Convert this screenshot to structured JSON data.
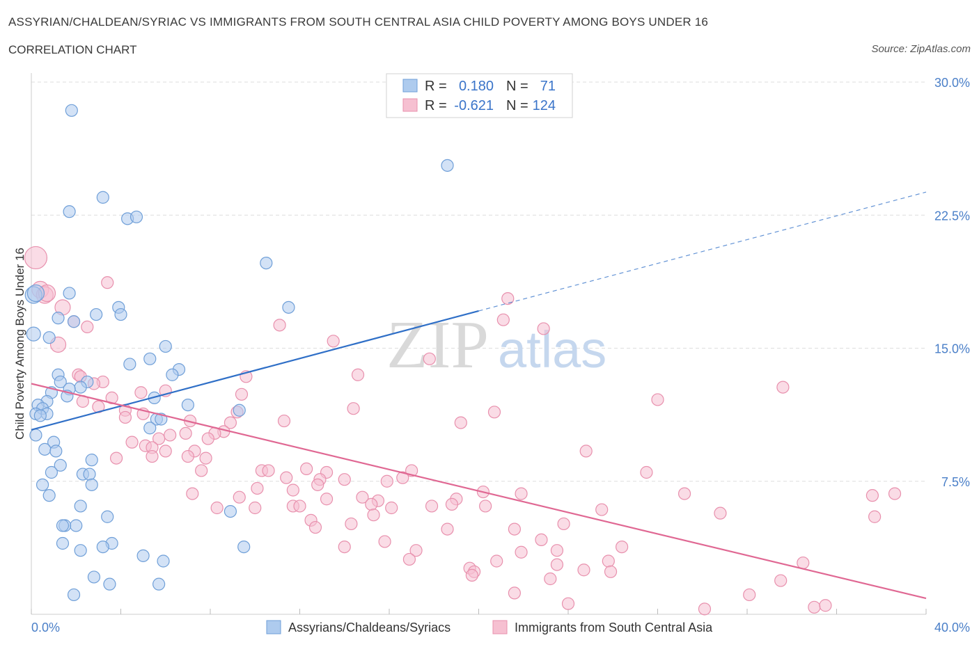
{
  "header": {
    "title": "ASSYRIAN/CHALDEAN/SYRIAC VS IMMIGRANTS FROM SOUTH CENTRAL ASIA CHILD POVERTY AMONG BOYS UNDER 16",
    "subtitle": "CORRELATION CHART",
    "source": "Source: ZipAtlas.com"
  },
  "watermark": {
    "zip": "ZIP",
    "atlas": "atlas"
  },
  "colors": {
    "blue_fill": "#aecbee",
    "blue_stroke": "#6f9fd8",
    "blue_line": "#2f6fc7",
    "pink_fill": "#f6c0d1",
    "pink_stroke": "#e890ad",
    "pink_line": "#e06893",
    "grid": "#dddddd",
    "tick_text": "#4a7fc8"
  },
  "legend_stats": {
    "r_label": "R =",
    "n_label": "N =",
    "rows": [
      {
        "r": "0.180",
        "n": "71"
      },
      {
        "r": "-0.621",
        "n": "124"
      }
    ]
  },
  "chart_data": {
    "type": "scatter",
    "title": "ASSYRIAN/CHALDEAN/SYRIAC VS IMMIGRANTS FROM SOUTH CENTRAL ASIA CHILD POVERTY AMONG BOYS UNDER 16",
    "xlabel": "",
    "ylabel": "Child Poverty Among Boys Under 16",
    "xlim": [
      0,
      40
    ],
    "ylim": [
      0,
      30
    ],
    "x_tick_labels": [
      "0.0%",
      "40.0%"
    ],
    "y_ticks": [
      7.5,
      15,
      22.5,
      30
    ],
    "y_tick_labels": [
      "7.5%",
      "15.0%",
      "22.5%",
      "30.0%"
    ],
    "grid": true,
    "legend_position": "bottom",
    "series": [
      {
        "name": "Assyrians/Chaldeans/Syriacs",
        "r": 0.18,
        "n": 71,
        "trend": {
          "x0": 0,
          "y0": 10.4,
          "x1": 20,
          "y1": 17.1,
          "dashed_to_x": 40,
          "dashed_to_y": 23.8
        },
        "points": [
          [
            1.8,
            28.4
          ],
          [
            3.2,
            23.5
          ],
          [
            1.7,
            22.7
          ],
          [
            4.3,
            22.3
          ],
          [
            4.7,
            22.4
          ],
          [
            18.6,
            25.3
          ],
          [
            10.5,
            19.8
          ],
          [
            0.1,
            18.0
          ],
          [
            1.7,
            18.1
          ],
          [
            3.9,
            17.3
          ],
          [
            4.0,
            16.9
          ],
          [
            2.9,
            16.9
          ],
          [
            1.2,
            16.7
          ],
          [
            1.9,
            16.5
          ],
          [
            11.5,
            17.3
          ],
          [
            0.1,
            15.8
          ],
          [
            0.8,
            15.6
          ],
          [
            6.0,
            15.1
          ],
          [
            5.3,
            14.4
          ],
          [
            4.4,
            14.1
          ],
          [
            6.6,
            13.8
          ],
          [
            6.3,
            13.5
          ],
          [
            1.2,
            13.5
          ],
          [
            1.3,
            13.1
          ],
          [
            2.5,
            13.1
          ],
          [
            2.2,
            12.8
          ],
          [
            1.7,
            12.7
          ],
          [
            0.9,
            12.5
          ],
          [
            1.6,
            12.3
          ],
          [
            5.5,
            12.2
          ],
          [
            0.7,
            12.0
          ],
          [
            0.3,
            11.8
          ],
          [
            0.5,
            11.6
          ],
          [
            0.2,
            11.3
          ],
          [
            0.7,
            11.3
          ],
          [
            0.4,
            11.2
          ],
          [
            7.0,
            11.8
          ],
          [
            9.3,
            11.5
          ],
          [
            5.6,
            11.0
          ],
          [
            5.3,
            10.5
          ],
          [
            5.8,
            11.0
          ],
          [
            0.2,
            10.1
          ],
          [
            1.0,
            9.7
          ],
          [
            0.6,
            9.3
          ],
          [
            1.1,
            9.2
          ],
          [
            2.7,
            8.7
          ],
          [
            1.3,
            8.4
          ],
          [
            0.9,
            8.0
          ],
          [
            2.3,
            7.9
          ],
          [
            2.6,
            7.9
          ],
          [
            0.5,
            7.3
          ],
          [
            2.7,
            7.3
          ],
          [
            0.8,
            6.7
          ],
          [
            2.2,
            6.1
          ],
          [
            8.9,
            5.8
          ],
          [
            3.4,
            5.5
          ],
          [
            1.5,
            5.0
          ],
          [
            1.4,
            5.0
          ],
          [
            2.0,
            5.0
          ],
          [
            1.4,
            4.0
          ],
          [
            3.6,
            4.0
          ],
          [
            3.2,
            3.8
          ],
          [
            2.2,
            3.6
          ],
          [
            9.5,
            3.8
          ],
          [
            5.0,
            3.3
          ],
          [
            5.9,
            3.0
          ],
          [
            2.8,
            2.1
          ],
          [
            3.5,
            1.7
          ],
          [
            5.7,
            1.7
          ],
          [
            1.9,
            1.1
          ],
          [
            0.2,
            18.1
          ]
        ]
      },
      {
        "name": "Immigrants from South Central Asia",
        "r": -0.621,
        "n": 124,
        "trend": {
          "x0": 0,
          "y0": 13.0,
          "x1": 40,
          "y1": 0.9
        },
        "points": [
          [
            0.2,
            20.1
          ],
          [
            0.4,
            18.3
          ],
          [
            0.6,
            18.0
          ],
          [
            0.7,
            18.1
          ],
          [
            3.4,
            18.7
          ],
          [
            1.4,
            17.3
          ],
          [
            1.9,
            16.5
          ],
          [
            2.5,
            16.2
          ],
          [
            11.1,
            16.3
          ],
          [
            21.1,
            16.6
          ],
          [
            22.9,
            16.1
          ],
          [
            21.3,
            17.8
          ],
          [
            13.5,
            15.4
          ],
          [
            1.2,
            15.2
          ],
          [
            17.8,
            14.4
          ],
          [
            2.1,
            13.5
          ],
          [
            2.2,
            13.4
          ],
          [
            3.2,
            13.1
          ],
          [
            2.8,
            13.0
          ],
          [
            9.6,
            13.4
          ],
          [
            14.6,
            13.5
          ],
          [
            33.6,
            12.8
          ],
          [
            6.0,
            12.6
          ],
          [
            4.9,
            12.5
          ],
          [
            9.4,
            12.4
          ],
          [
            3.6,
            12.2
          ],
          [
            2.3,
            12.0
          ],
          [
            3.0,
            11.7
          ],
          [
            28.0,
            12.1
          ],
          [
            4.2,
            11.5
          ],
          [
            14.4,
            11.6
          ],
          [
            20.7,
            11.4
          ],
          [
            5.0,
            11.3
          ],
          [
            4.2,
            11.1
          ],
          [
            9.2,
            11.4
          ],
          [
            11.3,
            10.9
          ],
          [
            7.1,
            10.9
          ],
          [
            19.2,
            10.8
          ],
          [
            8.9,
            10.8
          ],
          [
            8.6,
            10.3
          ],
          [
            8.2,
            10.2
          ],
          [
            6.2,
            10.1
          ],
          [
            6.9,
            10.2
          ],
          [
            5.7,
            9.9
          ],
          [
            4.5,
            9.7
          ],
          [
            7.9,
            9.9
          ],
          [
            5.1,
            9.5
          ],
          [
            5.4,
            9.4
          ],
          [
            6.0,
            9.2
          ],
          [
            7.3,
            9.2
          ],
          [
            5.4,
            8.9
          ],
          [
            7.0,
            8.9
          ],
          [
            3.8,
            8.8
          ],
          [
            7.8,
            8.8
          ],
          [
            24.8,
            9.2
          ],
          [
            7.6,
            8.1
          ],
          [
            10.3,
            8.1
          ],
          [
            10.6,
            8.1
          ],
          [
            12.3,
            8.2
          ],
          [
            13.2,
            8.0
          ],
          [
            17.0,
            8.1
          ],
          [
            27.5,
            8.0
          ],
          [
            11.4,
            7.7
          ],
          [
            12.9,
            7.6
          ],
          [
            14.0,
            7.6
          ],
          [
            15.9,
            7.5
          ],
          [
            16.6,
            7.7
          ],
          [
            10.1,
            7.1
          ],
          [
            11.7,
            7.0
          ],
          [
            12.8,
            7.3
          ],
          [
            20.2,
            6.9
          ],
          [
            21.9,
            6.8
          ],
          [
            7.2,
            6.8
          ],
          [
            9.3,
            6.6
          ],
          [
            13.2,
            6.5
          ],
          [
            14.8,
            6.6
          ],
          [
            15.5,
            6.4
          ],
          [
            19.0,
            6.5
          ],
          [
            29.2,
            6.8
          ],
          [
            37.6,
            6.7
          ],
          [
            38.6,
            6.8
          ],
          [
            8.3,
            6.0
          ],
          [
            10.0,
            6.0
          ],
          [
            11.7,
            6.1
          ],
          [
            12.0,
            6.1
          ],
          [
            15.2,
            6.2
          ],
          [
            16.1,
            6.0
          ],
          [
            17.9,
            6.1
          ],
          [
            18.8,
            6.2
          ],
          [
            20.3,
            6.1
          ],
          [
            25.5,
            5.9
          ],
          [
            30.8,
            5.7
          ],
          [
            37.7,
            5.5
          ],
          [
            12.5,
            5.3
          ],
          [
            12.7,
            4.9
          ],
          [
            14.3,
            5.1
          ],
          [
            15.3,
            5.6
          ],
          [
            18.6,
            4.8
          ],
          [
            21.6,
            4.8
          ],
          [
            23.8,
            5.1
          ],
          [
            15.8,
            4.1
          ],
          [
            14.0,
            3.8
          ],
          [
            17.2,
            3.6
          ],
          [
            21.9,
            3.5
          ],
          [
            22.8,
            4.2
          ],
          [
            23.5,
            3.6
          ],
          [
            26.4,
            3.8
          ],
          [
            16.9,
            3.1
          ],
          [
            20.8,
            3.0
          ],
          [
            23.5,
            2.8
          ],
          [
            25.8,
            3.0
          ],
          [
            19.6,
            2.6
          ],
          [
            19.8,
            2.4
          ],
          [
            24.7,
            2.5
          ],
          [
            25.9,
            2.4
          ],
          [
            34.5,
            2.9
          ],
          [
            19.7,
            2.2
          ],
          [
            23.2,
            2.0
          ],
          [
            21.6,
            1.2
          ],
          [
            32.1,
            1.1
          ],
          [
            24.0,
            0.6
          ],
          [
            30.1,
            0.3
          ],
          [
            35.0,
            0.4
          ],
          [
            35.5,
            0.5
          ],
          [
            33.5,
            1.9
          ]
        ]
      }
    ]
  },
  "bottom_legend": {
    "items": [
      "Assyrians/Chaldeans/Syriacs",
      "Immigrants from South Central Asia"
    ]
  }
}
